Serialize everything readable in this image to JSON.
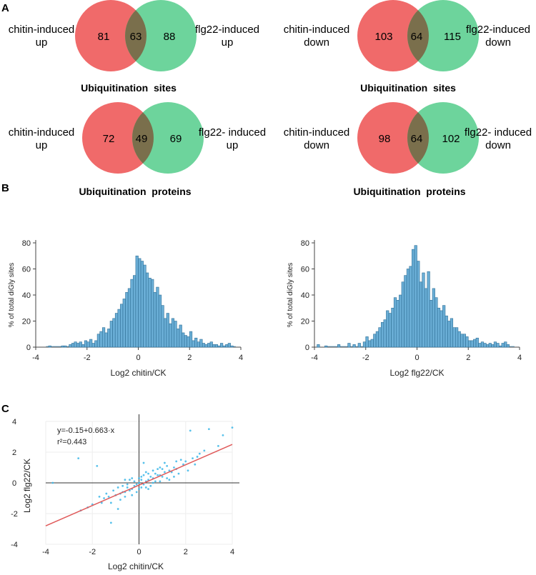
{
  "panels": {
    "a": "A",
    "b": "B",
    "c": "C"
  },
  "colors": {
    "red": "#f06a6a",
    "green": "#6dd49c",
    "overlap": "#7a6f4c",
    "bar": "#6aaed6",
    "bar_edge": "#2f6f96",
    "scatter": "#3bb6e8",
    "fit": "#e05a5a"
  },
  "venns": [
    {
      "left_label": [
        "chitin-induced",
        "up"
      ],
      "right_label": [
        "flg22-induced",
        "up"
      ],
      "left": "81",
      "overlap": "63",
      "right": "88",
      "caption": "Ubiquitination  sites"
    },
    {
      "left_label": [
        "chitin-induced",
        "down"
      ],
      "right_label": [
        "flg22-induced",
        "down"
      ],
      "left": "103",
      "overlap": "64",
      "right": "115",
      "caption": "Ubiquitination  sites"
    },
    {
      "left_label": [
        "chitin-induced",
        "up"
      ],
      "right_label": [
        "flg22- induced",
        "up"
      ],
      "left": "72",
      "overlap": "49",
      "right": "69",
      "caption": "Ubiquitination  proteins"
    },
    {
      "left_label": [
        "chitin-induced",
        "down"
      ],
      "right_label": [
        "flg22- induced",
        "down"
      ],
      "left": "98",
      "overlap": "64",
      "right": "102",
      "caption": "Ubiquitination  proteins"
    }
  ],
  "chart_data": [
    {
      "type": "bar",
      "title": "",
      "xlabel": "Log2 chitin/CK",
      "ylabel": "% of total diGly sites",
      "xlim": [
        -4,
        4
      ],
      "ylim": [
        0,
        80
      ],
      "xticks": [
        "-4",
        "-2",
        "0",
        "2",
        "4"
      ],
      "yticks": [
        "0",
        "20",
        "40",
        "60",
        "80"
      ],
      "bin_width": 0.1,
      "bin_centers": [
        -3.45,
        -2.95,
        -2.85,
        -2.65,
        -2.55,
        -2.45,
        -2.35,
        -2.25,
        -2.15,
        -2.05,
        -1.95,
        -1.85,
        -1.75,
        -1.65,
        -1.55,
        -1.45,
        -1.35,
        -1.25,
        -1.15,
        -1.05,
        -0.95,
        -0.85,
        -0.75,
        -0.65,
        -0.55,
        -0.45,
        -0.35,
        -0.25,
        -0.15,
        -0.05,
        0.05,
        0.15,
        0.25,
        0.35,
        0.45,
        0.55,
        0.65,
        0.75,
        0.85,
        0.95,
        1.05,
        1.15,
        1.25,
        1.35,
        1.45,
        1.55,
        1.65,
        1.75,
        1.85,
        1.95,
        2.05,
        2.15,
        2.25,
        2.35,
        2.45,
        2.55,
        2.65,
        2.75,
        2.85,
        2.95,
        3.05,
        3.15,
        3.25,
        3.35,
        3.45,
        3.55,
        3.65
      ],
      "values": [
        1,
        1,
        1,
        2,
        3,
        4,
        3,
        4,
        2,
        5,
        4,
        6,
        3,
        5,
        10,
        12,
        15,
        11,
        14,
        20,
        22,
        26,
        29,
        33,
        37,
        42,
        45,
        52,
        55,
        70,
        68,
        66,
        63,
        57,
        53,
        52,
        42,
        46,
        40,
        32,
        22,
        26,
        18,
        22,
        20,
        14,
        17,
        11,
        9,
        8,
        12,
        5,
        7,
        4,
        6,
        3,
        2,
        3,
        4,
        2,
        2,
        1,
        3,
        1,
        2,
        3,
        1
      ]
    },
    {
      "type": "bar",
      "title": "",
      "xlabel": "Log2 flg22/CK",
      "ylabel": "% of total diGly sites",
      "xlim": [
        -4,
        4
      ],
      "ylim": [
        0,
        80
      ],
      "xticks": [
        "-4",
        "-2",
        "0",
        "2",
        "4"
      ],
      "yticks": [
        "0",
        "20",
        "40",
        "60",
        "80"
      ],
      "bin_width": 0.1,
      "bin_centers": [
        -3.85,
        -3.55,
        -3.05,
        -2.65,
        -2.45,
        -2.25,
        -2.05,
        -1.95,
        -1.85,
        -1.75,
        -1.65,
        -1.55,
        -1.45,
        -1.35,
        -1.25,
        -1.15,
        -1.05,
        -0.95,
        -0.85,
        -0.75,
        -0.65,
        -0.55,
        -0.45,
        -0.35,
        -0.25,
        -0.15,
        -0.05,
        0.05,
        0.15,
        0.25,
        0.35,
        0.45,
        0.55,
        0.65,
        0.75,
        0.85,
        0.95,
        1.05,
        1.15,
        1.25,
        1.35,
        1.45,
        1.55,
        1.65,
        1.75,
        1.85,
        1.95,
        2.05,
        2.15,
        2.25,
        2.35,
        2.45,
        2.55,
        2.65,
        2.75,
        2.85,
        2.95,
        3.05,
        3.15,
        3.25,
        3.35,
        3.45,
        3.55
      ],
      "values": [
        2,
        1,
        2,
        3,
        2,
        3,
        4,
        8,
        5,
        6,
        10,
        12,
        15,
        19,
        21,
        28,
        26,
        30,
        38,
        36,
        40,
        50,
        55,
        60,
        62,
        75,
        78,
        66,
        50,
        57,
        45,
        58,
        36,
        45,
        38,
        30,
        28,
        32,
        24,
        20,
        22,
        15,
        15,
        12,
        10,
        10,
        8,
        5,
        5,
        6,
        7,
        3,
        4,
        3,
        2,
        3,
        2,
        4,
        3,
        1,
        3,
        4,
        2
      ]
    },
    {
      "type": "scatter",
      "title": "",
      "xlabel": "Log2 chitin/CK",
      "ylabel": "Log2 flg22/CK",
      "xlim": [
        -4,
        4
      ],
      "ylim": [
        -4,
        4
      ],
      "xticks": [
        "-4",
        "-2",
        "0",
        "2",
        "4"
      ],
      "yticks": [
        "-4",
        "-2",
        "0",
        "2",
        "4"
      ],
      "fit": {
        "intercept": -0.15,
        "slope": 0.663,
        "x_range": [
          -4,
          4
        ]
      },
      "annotation_lines": [
        "y=-0.15+0.663·x",
        "r²=0.443"
      ],
      "points_x": [
        3.0,
        2.8,
        4.0,
        3.4,
        -2.6,
        -2.5,
        -1.8,
        -0.9,
        -3.7,
        2.2,
        3.6,
        -1.2,
        0.2,
        1.6,
        2.5,
        -0.3,
        0.9,
        1.3,
        -0.6,
        0.4,
        -1.5,
        1.1,
        0.6,
        -0.2,
        0.0,
        0.3,
        -0.4,
        0.7,
        -0.8,
        1.9,
        -1.0,
        0.5,
        1.5,
        -0.1,
        0.1,
        0.8,
        -0.5,
        1.2,
        -1.3,
        2.0,
        -0.7,
        0.2,
        0.6,
        -0.3,
        1.0,
        0.4,
        -0.6,
        1.4,
        -0.9,
        0.0,
        2.3,
        -1.6,
        0.9,
        1.7,
        -0.2,
        0.3,
        1.1,
        -1.1,
        0.7,
        0.1,
        -0.4,
        1.8,
        -2.0,
        0.5,
        2.6,
        -0.8,
        1.3,
        0.2,
        -1.4,
        0.8,
        0.0,
        1.5,
        -0.5,
        2.1,
        -0.1,
        0.6,
        -1.7,
        1.0,
        0.4,
        -0.3,
        2.4,
        -2.2,
        1.6,
        -0.7,
        0.3,
        1.2,
        -1.2,
        0.1,
        0.9,
        -0.6
      ],
      "points_y": [
        3.5,
        2.1,
        3.6,
        2.4,
        1.6,
        -1.8,
        1.1,
        -1.7,
        0.0,
        3.4,
        3.1,
        -2.6,
        1.3,
        0.9,
        1.7,
        -0.4,
        0.5,
        0.8,
        -0.6,
        0.2,
        -1.0,
        0.7,
        0.3,
        -0.2,
        0.0,
        0.1,
        -0.5,
        0.6,
        -0.7,
        1.2,
        -0.8,
        0.4,
        1.0,
        -0.1,
        0.2,
        0.5,
        -0.3,
        1.1,
        -0.9,
        1.4,
        -0.6,
        -0.1,
        0.8,
        0.3,
        0.4,
        0.6,
        -0.9,
        0.7,
        -0.3,
        -0.4,
        1.6,
        -1.3,
        1.0,
        0.6,
        0.1,
        -0.3,
        1.3,
        -0.5,
        0.1,
        0.4,
        0.2,
        1.5,
        -1.4,
        -0.2,
        1.9,
        -1.1,
        0.2,
        0.5,
        -0.7,
        0.9,
        0.3,
        0.4,
        -0.1,
        0.8,
        -0.6,
        0.0,
        -0.9,
        0.9,
        -0.4,
        -0.8,
        1.2,
        -1.6,
        1.4,
        -0.2,
        0.7,
        0.3,
        -1.3,
        -0.3,
        0.1,
        0.2
      ]
    }
  ]
}
